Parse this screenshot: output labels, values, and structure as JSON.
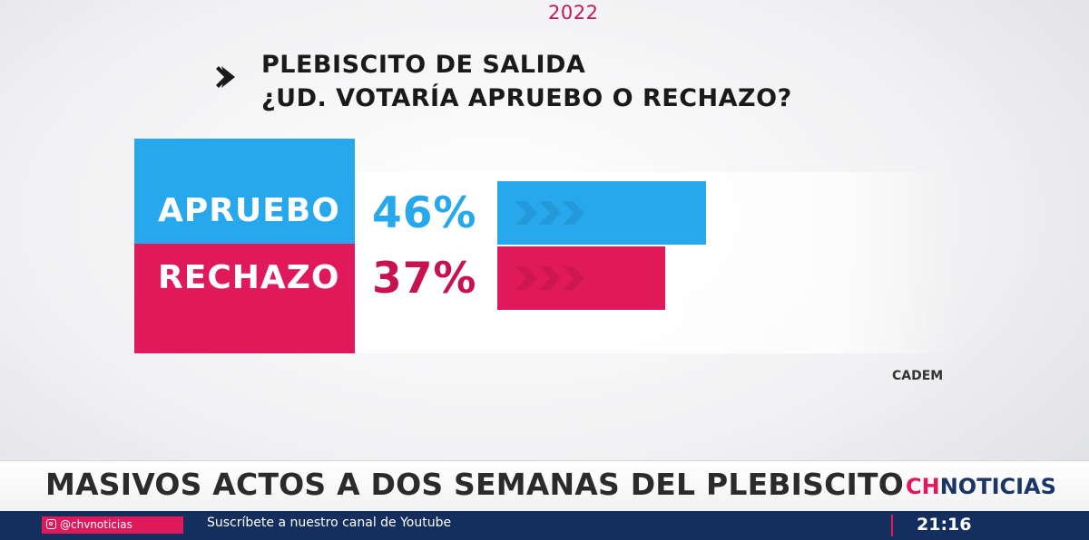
{
  "header": {
    "year": "2022"
  },
  "source": "CADEM",
  "chart_data": {
    "type": "bar",
    "orientation": "horizontal",
    "title": "PLEBISCITO DE SALIDA",
    "subtitle": "¿UD. VOTARÍA APRUEBO O RECHAZO?",
    "categories": [
      "APRUEBO",
      "RECHAZO"
    ],
    "values": [
      46,
      37
    ],
    "value_labels": [
      "46%",
      "37%"
    ],
    "colors": [
      "#27a7ec",
      "#e0195a"
    ],
    "xlim": [
      0,
      100
    ],
    "grid": false,
    "legend": "none"
  },
  "lower_third": {
    "headline": "MASIVOS ACTOS A DOS SEMANAS DEL PLEBISCITO",
    "brand_prefix": "CH",
    "brand_suffix": "NOTICIAS"
  },
  "ticker": {
    "social_icon": "instagram-icon",
    "social_handle": "@chvnoticias",
    "message": "Suscríbete a nuestro canal de Youtube",
    "clock": "21:16"
  },
  "colors": {
    "accent_pink": "#e0195a",
    "accent_blue": "#27a7ec",
    "ticker_navy": "#142f5e"
  }
}
